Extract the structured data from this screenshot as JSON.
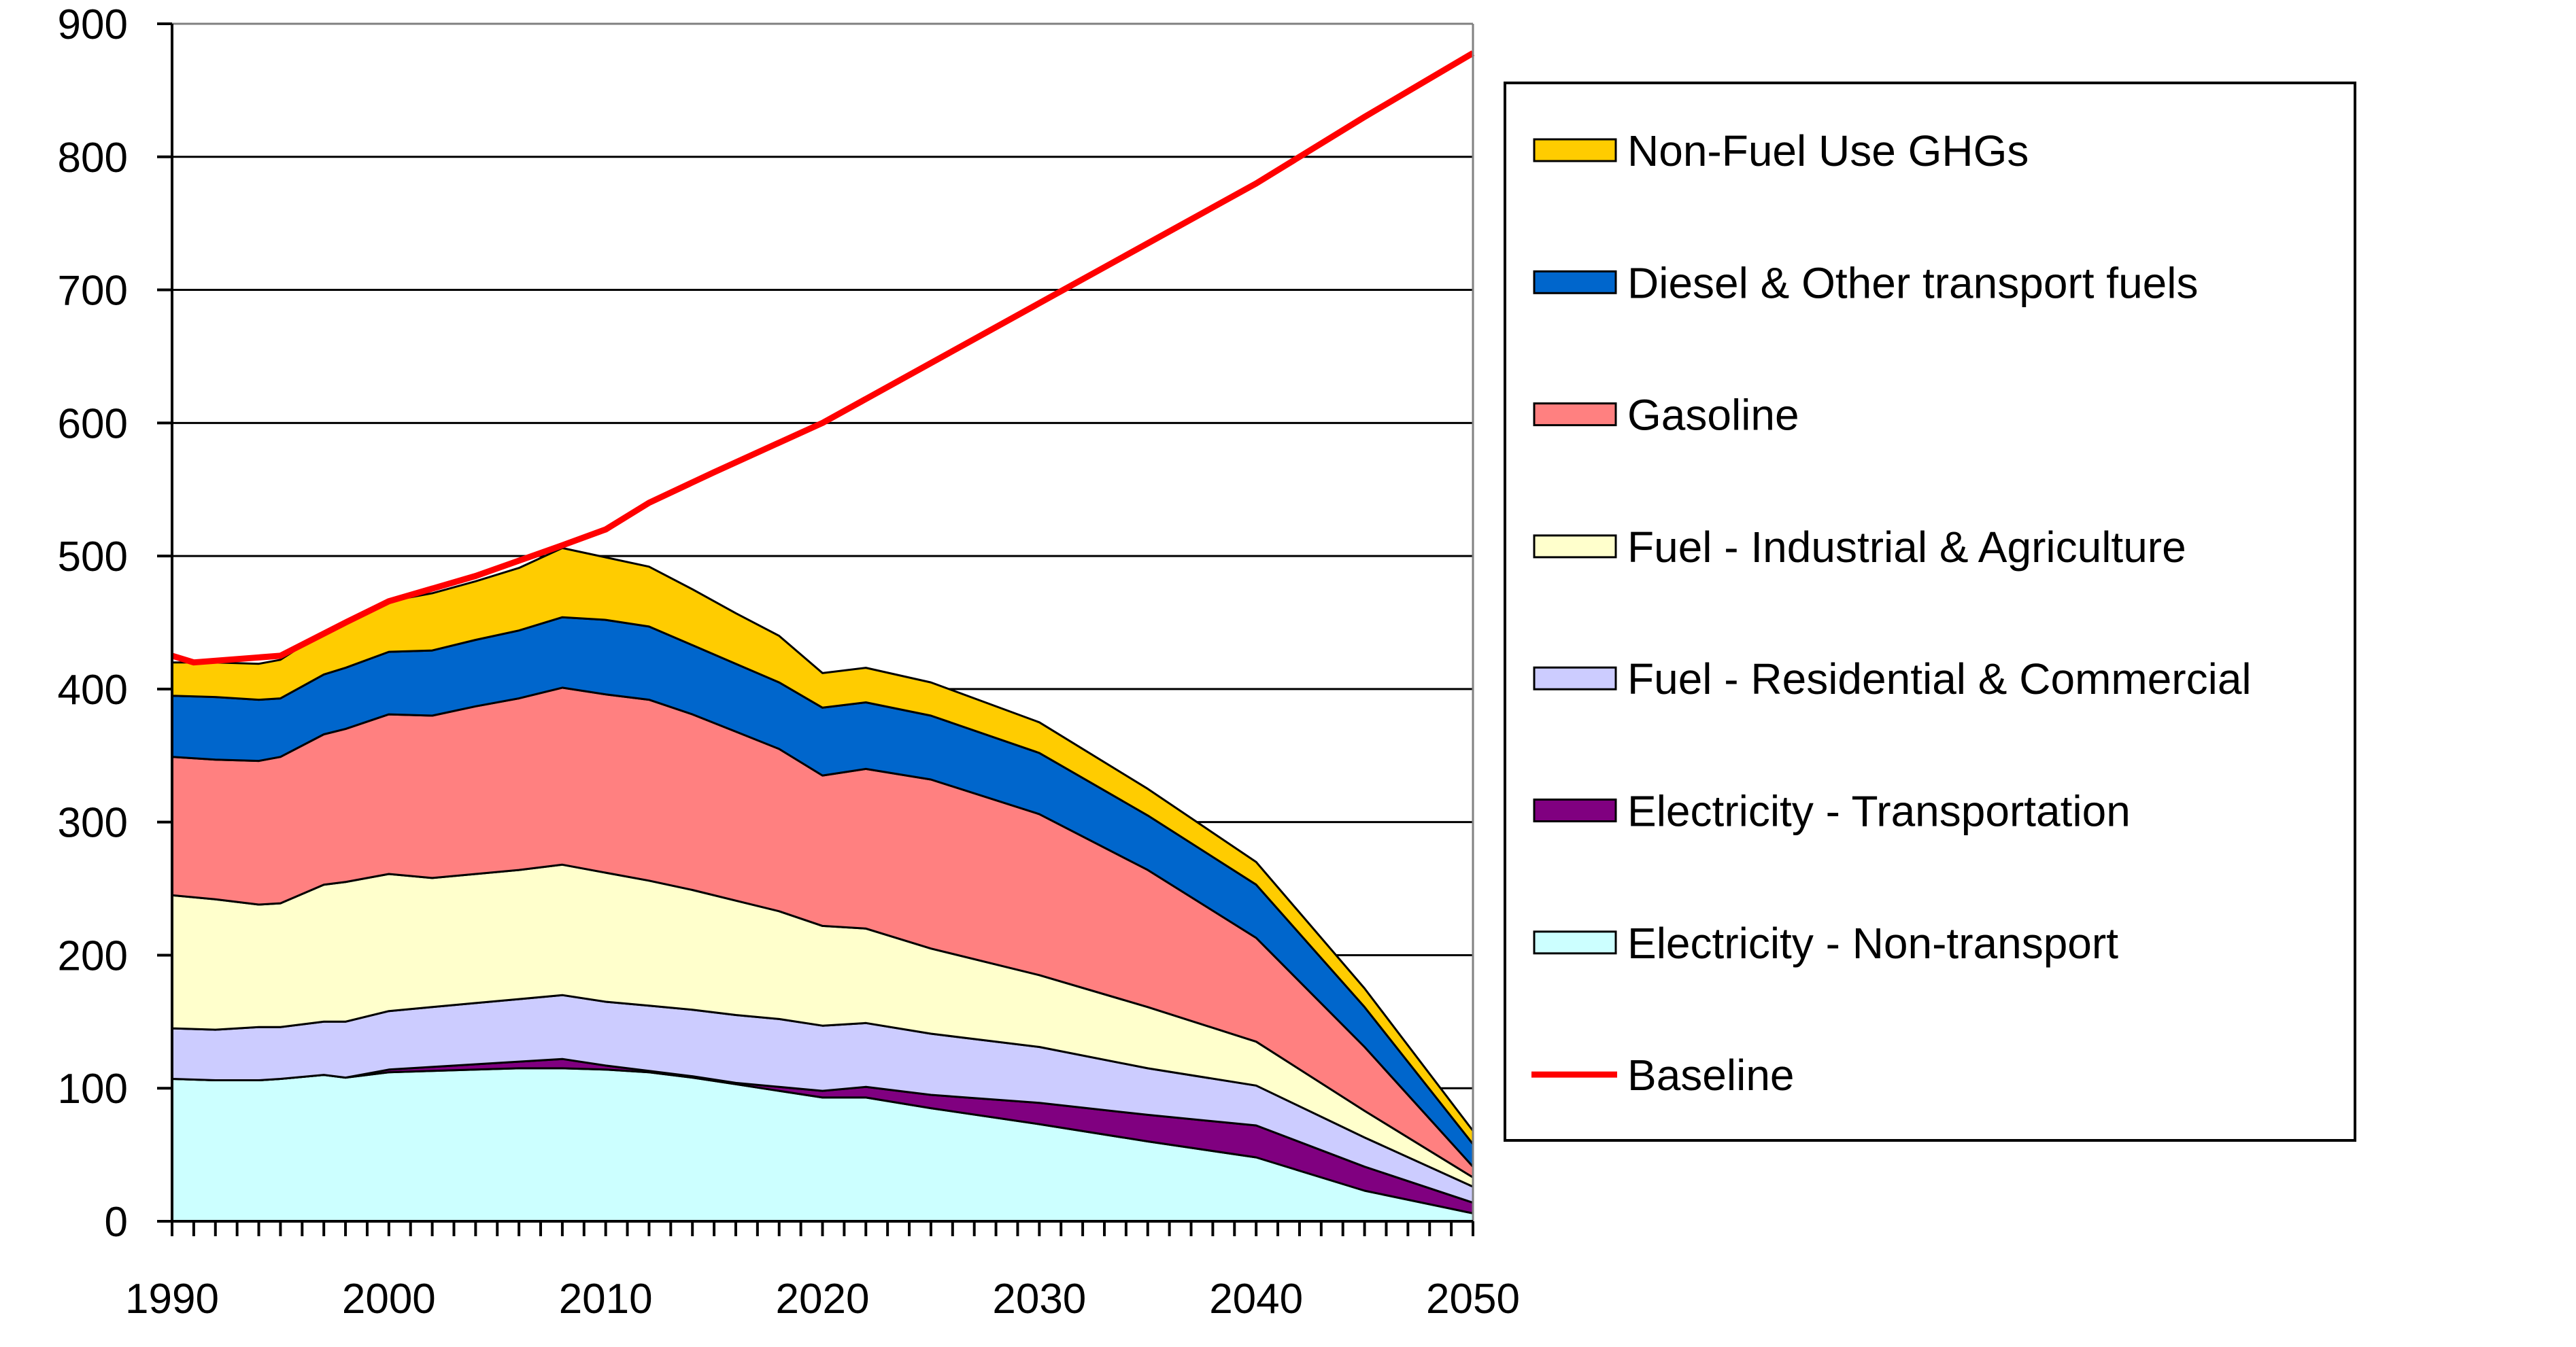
{
  "chart_data": {
    "type": "area",
    "stacked": true,
    "title": "",
    "xlabel": "",
    "ylabel": "",
    "xlim": [
      1990,
      2050
    ],
    "ylim": [
      0,
      900
    ],
    "x_ticks": [
      1990,
      2000,
      2010,
      2020,
      2030,
      2040,
      2050
    ],
    "y_ticks": [
      0,
      100,
      200,
      300,
      400,
      500,
      600,
      700,
      800,
      900
    ],
    "grid": "horizontal",
    "legend_position": "right",
    "x": [
      1990,
      1992,
      1994,
      1995,
      1997,
      1998,
      2000,
      2002,
      2004,
      2006,
      2008,
      2010,
      2012,
      2014,
      2016,
      2018,
      2020,
      2022,
      2025,
      2030,
      2035,
      2040,
      2045,
      2050
    ],
    "series": [
      {
        "name": "Electricity - Non-transport",
        "color": "#CCFFFF",
        "values": [
          107,
          106,
          106,
          107,
          110,
          108,
          112,
          113,
          114,
          115,
          115,
          114,
          112,
          108,
          103,
          98,
          93,
          93,
          85,
          73,
          60,
          48,
          23,
          6
        ]
      },
      {
        "name": "Electricity - Transportation",
        "color": "#800080",
        "values": [
          0,
          0,
          0,
          0,
          0,
          0,
          2,
          3,
          4,
          5,
          7,
          3,
          1,
          1,
          1,
          3,
          5,
          8,
          10,
          16,
          20,
          24,
          18,
          8
        ]
      },
      {
        "name": "Fuel - Residential & Commercial",
        "color": "#CCCCFF",
        "values": [
          38,
          38,
          40,
          39,
          40,
          42,
          44,
          45,
          46,
          47,
          48,
          48,
          49,
          50,
          51,
          51,
          49,
          48,
          46,
          42,
          35,
          30,
          22,
          12
        ]
      },
      {
        "name": "Fuel - Industrial & Agriculture",
        "color": "#FFFFCC",
        "values": [
          100,
          98,
          92,
          93,
          103,
          105,
          103,
          97,
          97,
          97,
          98,
          97,
          94,
          90,
          86,
          81,
          75,
          71,
          64,
          54,
          46,
          33,
          20,
          7
        ]
      },
      {
        "name": "Gasoline",
        "color": "#FF8080",
        "values": [
          104,
          105,
          108,
          110,
          113,
          115,
          120,
          122,
          126,
          129,
          133,
          134,
          136,
          132,
          127,
          122,
          113,
          120,
          127,
          121,
          103,
          78,
          48,
          8
        ]
      },
      {
        "name": "Diesel & Other transport fuels",
        "color": "#0066CC",
        "values": [
          46,
          47,
          46,
          44,
          45,
          46,
          47,
          49,
          50,
          51,
          53,
          56,
          55,
          52,
          51,
          50,
          51,
          50,
          48,
          46,
          41,
          40,
          30,
          17
        ]
      },
      {
        "name": "Non-Fuel Use GHGs",
        "color": "#FFCC00",
        "values": [
          25,
          26,
          27,
          29,
          32,
          35,
          38,
          43,
          44,
          47,
          52,
          47,
          45,
          42,
          38,
          35,
          26,
          26,
          25,
          23,
          20,
          17,
          14,
          10
        ]
      }
    ],
    "baseline": {
      "name": "Baseline",
      "color": "#FF0000",
      "x": [
        1990,
        1991,
        1995,
        1998,
        2000,
        2004,
        2008,
        2010,
        2012,
        2015,
        2020,
        2025,
        2030,
        2035,
        2040,
        2045,
        2050
      ],
      "values": [
        425,
        420,
        425,
        450,
        466,
        485,
        508,
        520,
        540,
        563,
        600,
        645,
        690,
        735,
        780,
        830,
        878
      ]
    },
    "legend_order": [
      "Non-Fuel Use GHGs",
      "Diesel & Other transport fuels",
      "Gasoline",
      "Fuel - Industrial & Agriculture",
      "Fuel - Residential & Commercial",
      "Electricity - Transportation",
      "Electricity - Non-transport",
      "Baseline"
    ]
  }
}
